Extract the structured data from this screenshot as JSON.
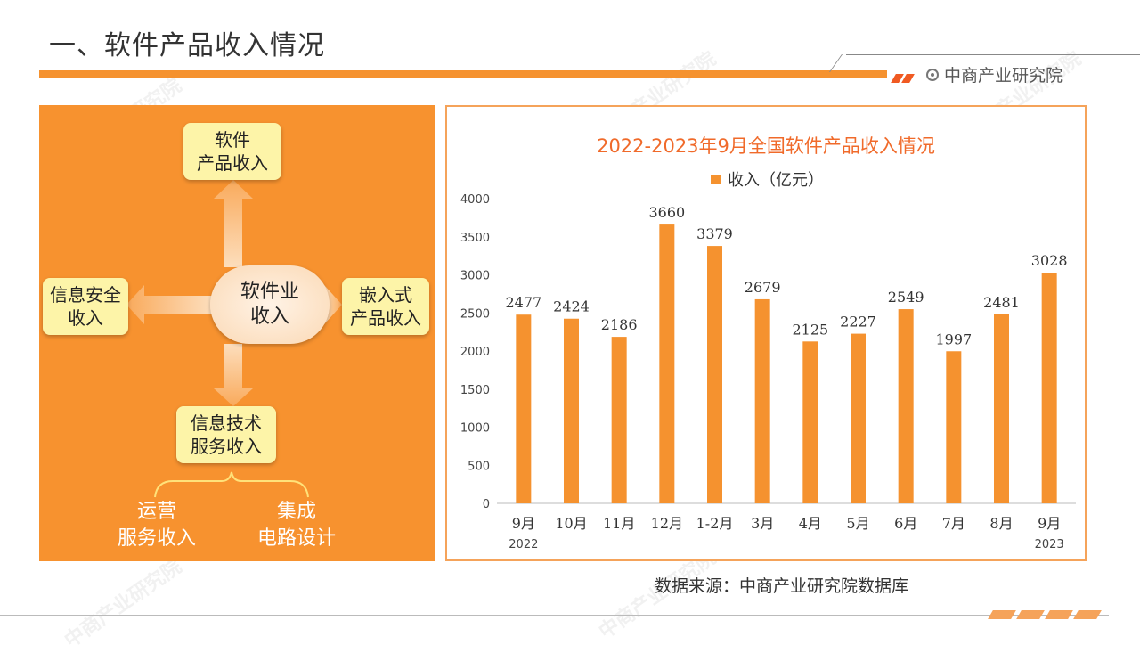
{
  "header": {
    "title": "一、软件产品收入情况",
    "brand": "中商产业研究院"
  },
  "diagram": {
    "center": "软件业\n收入",
    "top": "软件\n产品收入",
    "left": "信息安全\n收入",
    "right": "嵌入式\n产品收入",
    "bottom": "信息技术\n服务收入",
    "sub_left": "运营\n服务收入",
    "sub_right": "集成\n电路设计"
  },
  "chart_data": {
    "type": "bar",
    "title": "2022-2023年9月全国软件产品收入情况",
    "legend": [
      "收入（亿元）"
    ],
    "categories": [
      "9月",
      "10月",
      "11月",
      "12月",
      "1-2月",
      "3月",
      "4月",
      "5月",
      "6月",
      "7月",
      "8月",
      "9月"
    ],
    "year_labels": {
      "first": "2022",
      "last": "2023"
    },
    "series": [
      {
        "name": "收入（亿元）",
        "values": [
          2477,
          2424,
          2186,
          3660,
          3379,
          2679,
          2125,
          2227,
          2549,
          1997,
          2481,
          3028
        ]
      }
    ],
    "ylim": [
      0,
      4000
    ],
    "yticks": [
      0,
      500,
      1000,
      1500,
      2000,
      2500,
      3000,
      3500,
      4000
    ],
    "bar_color": "#f5922f",
    "grid": false,
    "legend_position": "top"
  },
  "footer": {
    "source": "数据来源：中商产业研究院数据库"
  }
}
